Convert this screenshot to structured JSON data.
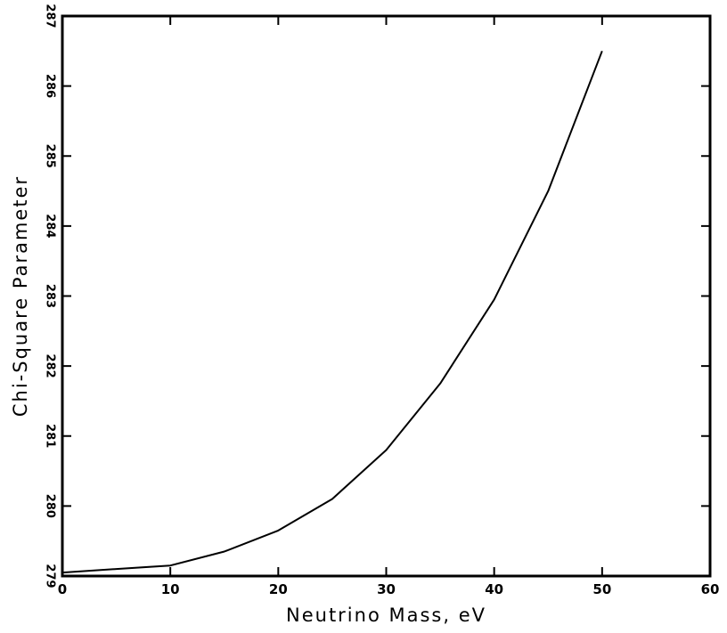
{
  "chart_data": {
    "type": "line",
    "title": "",
    "xlabel": "Neutrino Mass, eV",
    "ylabel": "Chi-Square Parameter",
    "xlim": [
      0,
      60
    ],
    "ylim": [
      279,
      287
    ],
    "x_ticks": [
      0,
      10,
      20,
      30,
      40,
      50,
      60
    ],
    "y_ticks": [
      279,
      280,
      281,
      282,
      283,
      284,
      285,
      286,
      287
    ],
    "x_tick_labels": [
      "0",
      "10",
      "20",
      "30",
      "40",
      "50",
      "60"
    ],
    "y_tick_labels": [
      "279",
      "280",
      "281",
      "282",
      "283",
      "284",
      "285",
      "286",
      "287"
    ],
    "grid": false,
    "legend": false,
    "series": [
      {
        "x": [
          0,
          5,
          10,
          15,
          20,
          25,
          30,
          35,
          40,
          45,
          50
        ],
        "y": [
          279.05,
          279.1,
          279.15,
          279.35,
          279.65,
          280.1,
          280.8,
          281.75,
          282.95,
          284.5,
          286.5
        ],
        "color": "#000000"
      }
    ]
  }
}
